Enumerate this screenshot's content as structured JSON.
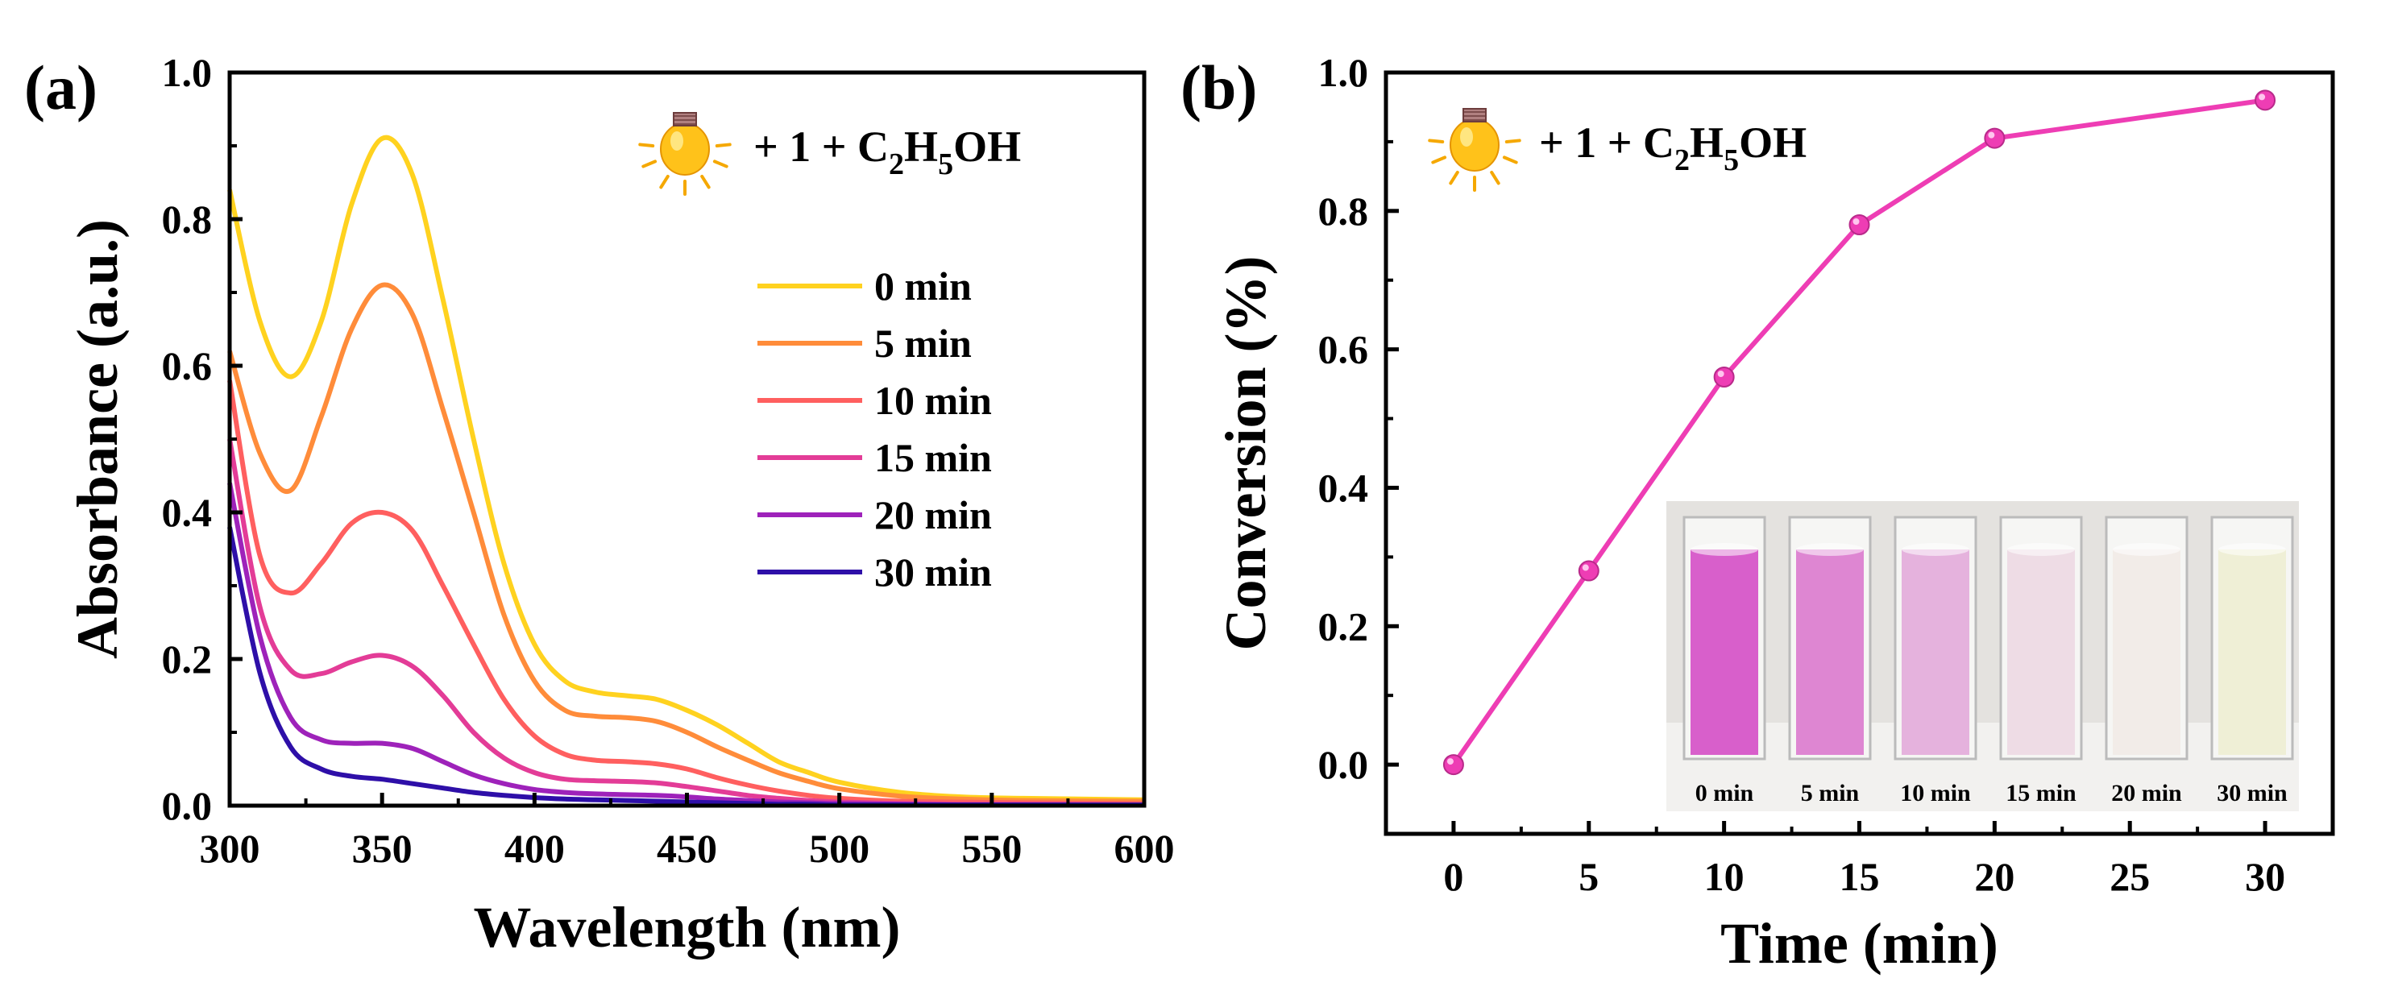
{
  "chart_data": [
    {
      "panel_label": "(a)",
      "type": "line",
      "xlabel": "Wavelength (nm)",
      "ylabel": "Absorbance (a.u.)",
      "xlim": [
        300,
        600
      ],
      "ylim": [
        0,
        1.0
      ],
      "xticks": [
        "300",
        "350",
        "400",
        "450",
        "500",
        "550",
        "600"
      ],
      "yticks": [
        "0.0",
        "0.2",
        "0.4",
        "0.6",
        "0.8",
        "1.0"
      ],
      "annotation": {
        "prefix": "+ 1 + C",
        "sub1": "2",
        "mid": "H",
        "sub2": "5",
        "suffix": "OH",
        "icon": "light-bulb-icon"
      },
      "legend_position": "center-right",
      "series": [
        {
          "name": "0 min",
          "color": "#FFD21F",
          "x": [
            300,
            310,
            320,
            330,
            340,
            350,
            360,
            370,
            380,
            390,
            400,
            410,
            420,
            430,
            440,
            450,
            460,
            470,
            480,
            490,
            500,
            520,
            540,
            560,
            600
          ],
          "y": [
            0.84,
            0.66,
            0.585,
            0.66,
            0.82,
            0.91,
            0.86,
            0.69,
            0.5,
            0.33,
            0.22,
            0.17,
            0.155,
            0.15,
            0.145,
            0.13,
            0.11,
            0.085,
            0.06,
            0.045,
            0.032,
            0.018,
            0.012,
            0.01,
            0.008
          ]
        },
        {
          "name": "5 min",
          "color": "#FF8C3A",
          "x": [
            300,
            310,
            320,
            330,
            340,
            350,
            360,
            370,
            380,
            390,
            400,
            410,
            420,
            430,
            440,
            450,
            460,
            470,
            480,
            490,
            500,
            520,
            540,
            560,
            600
          ],
          "y": [
            0.62,
            0.48,
            0.43,
            0.53,
            0.65,
            0.71,
            0.67,
            0.54,
            0.4,
            0.26,
            0.17,
            0.13,
            0.122,
            0.12,
            0.115,
            0.1,
            0.08,
            0.062,
            0.045,
            0.033,
            0.023,
            0.013,
            0.009,
            0.007,
            0.006
          ]
        },
        {
          "name": "10 min",
          "color": "#FF5F5F",
          "x": [
            300,
            310,
            320,
            330,
            340,
            350,
            360,
            370,
            380,
            390,
            400,
            410,
            420,
            430,
            440,
            450,
            460,
            470,
            480,
            490,
            500,
            520,
            540,
            560,
            600
          ],
          "y": [
            0.58,
            0.34,
            0.29,
            0.33,
            0.385,
            0.4,
            0.375,
            0.3,
            0.22,
            0.145,
            0.095,
            0.07,
            0.062,
            0.06,
            0.057,
            0.05,
            0.038,
            0.028,
            0.02,
            0.014,
            0.01,
            0.006,
            0.005,
            0.004,
            0.003
          ]
        },
        {
          "name": "15 min",
          "color": "#E33C97",
          "x": [
            300,
            310,
            320,
            330,
            340,
            350,
            360,
            370,
            380,
            390,
            400,
            410,
            420,
            430,
            440,
            450,
            460,
            470,
            480,
            490,
            500,
            520,
            540,
            560,
            600
          ],
          "y": [
            0.5,
            0.27,
            0.185,
            0.18,
            0.196,
            0.205,
            0.19,
            0.15,
            0.1,
            0.065,
            0.045,
            0.036,
            0.034,
            0.033,
            0.031,
            0.026,
            0.02,
            0.014,
            0.01,
            0.007,
            0.005,
            0.003,
            0.002,
            0.002,
            0.001
          ]
        },
        {
          "name": "20 min",
          "color": "#9E22BA",
          "x": [
            300,
            310,
            320,
            330,
            340,
            350,
            360,
            370,
            380,
            390,
            400,
            410,
            420,
            430,
            440,
            450,
            460,
            470,
            480,
            490,
            500,
            520,
            540,
            560,
            600
          ],
          "y": [
            0.44,
            0.23,
            0.12,
            0.09,
            0.085,
            0.085,
            0.078,
            0.06,
            0.042,
            0.03,
            0.022,
            0.018,
            0.016,
            0.015,
            0.014,
            0.012,
            0.009,
            0.007,
            0.005,
            0.004,
            0.003,
            0.002,
            0.001,
            0.001,
            0.001
          ]
        },
        {
          "name": "30 min",
          "color": "#2E0FA8",
          "x": [
            300,
            310,
            320,
            330,
            340,
            350,
            360,
            370,
            380,
            390,
            400,
            410,
            420,
            430,
            440,
            450,
            460,
            470,
            480,
            490,
            500,
            520,
            540,
            560,
            600
          ],
          "y": [
            0.38,
            0.18,
            0.08,
            0.05,
            0.04,
            0.036,
            0.03,
            0.024,
            0.018,
            0.014,
            0.011,
            0.009,
            0.008,
            0.007,
            0.006,
            0.005,
            0.004,
            0.003,
            0.002,
            0.002,
            0.001,
            0.001,
            0.001,
            0.001,
            0.001
          ]
        }
      ]
    },
    {
      "panel_label": "(b)",
      "type": "line",
      "xlabel": "Time (min)",
      "ylabel": "Conversion (%)",
      "xlim": [
        -2.5,
        32.5
      ],
      "ylim": [
        -0.1,
        1.0
      ],
      "xticks": [
        "0",
        "5",
        "10",
        "15",
        "20",
        "25",
        "30"
      ],
      "yticks": [
        "0.0",
        "0.2",
        "0.4",
        "0.6",
        "0.8",
        "1.0"
      ],
      "annotation": {
        "prefix": "+ 1 + C",
        "sub1": "2",
        "mid": "H",
        "sub2": "5",
        "suffix": "OH",
        "icon": "light-bulb-icon"
      },
      "series": [
        {
          "name": "Conversion",
          "color": "#EE3DB4",
          "x": [
            0,
            5,
            10,
            15,
            20,
            30
          ],
          "y": [
            0.0,
            0.28,
            0.56,
            0.78,
            0.905,
            0.96
          ]
        }
      ],
      "inset": {
        "description_icon": "cuvette-photo-icon",
        "labels": [
          "0 min",
          "5 min",
          "10 min",
          "15 min",
          "20 min",
          "30 min"
        ],
        "colors": [
          "#D85FCB",
          "#DE86D2",
          "#E5B2DD",
          "#EEDCE5",
          "#F2ECE8",
          "#EFEFD6"
        ]
      }
    }
  ]
}
